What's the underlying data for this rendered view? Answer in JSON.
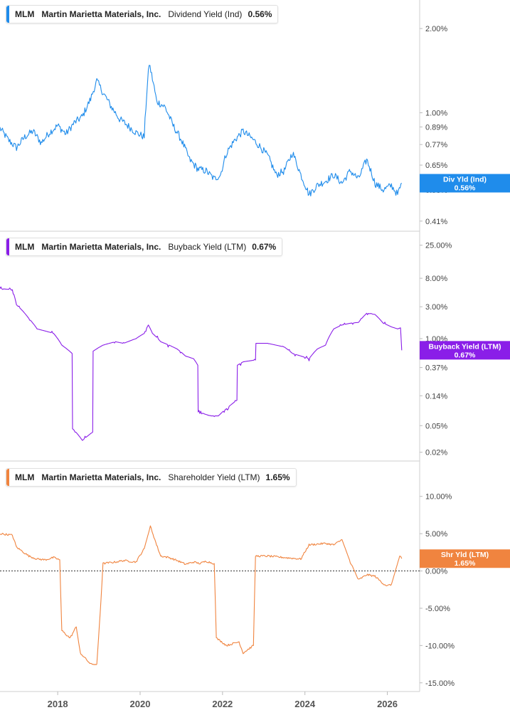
{
  "colors": {
    "dividend": "#1f8ceb",
    "buyback": "#8a1ee8",
    "shareholder": "#f0843f"
  },
  "chart_data": [
    {
      "type": "line",
      "ticker": "MLM",
      "company": "Martin Marietta Materials, Inc.",
      "metric": "Dividend Yield (Ind)",
      "current_value": "0.56%",
      "tag_label": "Div Yld (Ind)",
      "tag_value": "0.56%",
      "scale": "log",
      "ylim": [
        0.4,
        2.25
      ],
      "y_ticks": [
        {
          "v": 2.0,
          "label": "2.00%"
        },
        {
          "v": 1.0,
          "label": "1.00%"
        },
        {
          "v": 0.89,
          "label": "0.89%"
        },
        {
          "v": 0.77,
          "label": "0.77%"
        },
        {
          "v": 0.65,
          "label": "0.65%"
        },
        {
          "v": 0.53,
          "label": "0.53%"
        },
        {
          "v": 0.41,
          "label": "0.41%"
        }
      ],
      "x": [
        2016.6,
        2016.8,
        2017.0,
        2017.2,
        2017.4,
        2017.6,
        2017.8,
        2018.0,
        2018.2,
        2018.4,
        2018.6,
        2018.8,
        2018.95,
        2019.1,
        2019.3,
        2019.5,
        2019.7,
        2019.9,
        2020.1,
        2020.22,
        2020.4,
        2020.6,
        2020.8,
        2021.0,
        2021.2,
        2021.4,
        2021.6,
        2021.8,
        2021.95,
        2022.1,
        2022.3,
        2022.5,
        2022.75,
        2022.9,
        2023.1,
        2023.3,
        2023.5,
        2023.7,
        2023.9,
        2024.1,
        2024.3,
        2024.5,
        2024.7,
        2024.9,
        2025.1,
        2025.3,
        2025.5,
        2025.7,
        2025.9,
        2026.1,
        2026.25,
        2026.35
      ],
      "values": [
        0.88,
        0.8,
        0.75,
        0.82,
        0.86,
        0.78,
        0.85,
        0.9,
        0.84,
        0.92,
        0.97,
        1.12,
        1.3,
        1.18,
        1.05,
        0.95,
        0.9,
        0.85,
        0.82,
        1.5,
        1.1,
        1.05,
        0.9,
        0.8,
        0.68,
        0.63,
        0.62,
        0.58,
        0.6,
        0.72,
        0.8,
        0.86,
        0.8,
        0.76,
        0.7,
        0.6,
        0.62,
        0.72,
        0.6,
        0.51,
        0.55,
        0.57,
        0.6,
        0.56,
        0.62,
        0.58,
        0.68,
        0.56,
        0.53,
        0.55,
        0.51,
        0.56
      ]
    },
    {
      "type": "line",
      "ticker": "MLM",
      "company": "Martin Marietta Materials, Inc.",
      "metric": "Buyback Yield (LTM)",
      "current_value": "0.67%",
      "tag_label": "Buyback Yield (LTM)",
      "tag_value": "0.67%",
      "scale": "log",
      "ylim": [
        0.018,
        28
      ],
      "y_ticks": [
        {
          "v": 25,
          "label": "25.00%"
        },
        {
          "v": 8,
          "label": "8.00%"
        },
        {
          "v": 3,
          "label": "3.00%"
        },
        {
          "v": 1,
          "label": "1.00%"
        },
        {
          "v": 0.37,
          "label": "0.37%"
        },
        {
          "v": 0.14,
          "label": "0.14%"
        },
        {
          "v": 0.05,
          "label": "0.05%"
        },
        {
          "v": 0.02,
          "label": "0.02%"
        }
      ],
      "x": [
        2016.6,
        2016.9,
        2017.0,
        2017.3,
        2017.5,
        2017.7,
        2017.9,
        2018.1,
        2018.35,
        2018.36,
        2018.6,
        2018.85,
        2018.86,
        2019.1,
        2019.4,
        2019.6,
        2019.9,
        2020.1,
        2020.2,
        2020.3,
        2020.5,
        2020.7,
        2020.9,
        2021.1,
        2021.3,
        2021.4,
        2021.41,
        2021.7,
        2021.9,
        2022.1,
        2022.35,
        2022.36,
        2022.5,
        2022.8,
        2022.81,
        2023.1,
        2023.3,
        2023.5,
        2023.7,
        2023.9,
        2024.1,
        2024.3,
        2024.5,
        2024.7,
        2024.9,
        2025.1,
        2025.3,
        2025.5,
        2025.7,
        2025.9,
        2026.1,
        2026.25,
        2026.32,
        2026.35
      ],
      "values": [
        5.6,
        5.4,
        3.2,
        2.0,
        1.4,
        1.3,
        1.2,
        0.8,
        0.6,
        0.045,
        0.03,
        0.04,
        0.65,
        0.8,
        0.9,
        0.85,
        1.0,
        1.2,
        1.6,
        1.2,
        0.9,
        0.8,
        0.7,
        0.55,
        0.5,
        0.4,
        0.08,
        0.07,
        0.07,
        0.09,
        0.12,
        0.4,
        0.45,
        0.48,
        0.85,
        0.85,
        0.8,
        0.75,
        0.6,
        0.55,
        0.5,
        0.7,
        0.8,
        1.4,
        1.6,
        1.7,
        1.75,
        2.4,
        2.3,
        1.7,
        1.5,
        1.4,
        1.45,
        0.67
      ]
    },
    {
      "type": "line",
      "ticker": "MLM",
      "company": "Martin Marietta Materials, Inc.",
      "metric": "Shareholder Yield (LTM)",
      "current_value": "1.65%",
      "tag_label": "Shr Yld (LTM)",
      "tag_value": "1.65%",
      "scale": "linear",
      "ylim": [
        -15.5,
        11.5
      ],
      "zero_line": true,
      "y_ticks": [
        {
          "v": 10,
          "label": "10.00%"
        },
        {
          "v": 5,
          "label": "5.00%"
        },
        {
          "v": 0,
          "label": "0.00%"
        },
        {
          "v": -5,
          "label": "-5.00%"
        },
        {
          "v": -10,
          "label": "-10.00%"
        },
        {
          "v": -15,
          "label": "-15.00%"
        }
      ],
      "x": [
        2016.6,
        2016.9,
        2017.0,
        2017.3,
        2017.5,
        2017.7,
        2017.9,
        2018.05,
        2018.1,
        2018.3,
        2018.45,
        2018.55,
        2018.8,
        2018.95,
        2019.05,
        2019.1,
        2019.4,
        2019.6,
        2019.9,
        2020.1,
        2020.25,
        2020.4,
        2020.5,
        2020.7,
        2020.9,
        2021.1,
        2021.3,
        2021.45,
        2021.6,
        2021.8,
        2021.85,
        2022.1,
        2022.4,
        2022.5,
        2022.75,
        2022.8,
        2023.1,
        2023.5,
        2023.9,
        2024.1,
        2024.5,
        2024.7,
        2024.9,
        2025.1,
        2025.3,
        2025.5,
        2025.7,
        2025.9,
        2026.0,
        2026.1,
        2026.3,
        2026.35
      ],
      "values": [
        5.0,
        4.8,
        3.2,
        2.0,
        1.6,
        1.5,
        1.8,
        1.5,
        -8.0,
        -9.0,
        -7.5,
        -11.0,
        -12.5,
        -12.5,
        -4.0,
        1.0,
        1.2,
        1.4,
        1.2,
        3.0,
        6.0,
        3.5,
        2.0,
        1.8,
        1.4,
        0.9,
        1.2,
        1.0,
        1.3,
        1.0,
        -9.0,
        -10.0,
        -9.5,
        -11.0,
        -10.0,
        2.0,
        2.0,
        1.8,
        1.6,
        3.5,
        3.7,
        3.5,
        4.2,
        1.2,
        -1.2,
        -0.5,
        -0.7,
        -1.7,
        -2.0,
        -1.8,
        2.0,
        1.65
      ]
    }
  ],
  "x_axis": {
    "ticks": [
      {
        "v": 2018,
        "label": "2018"
      },
      {
        "v": 2020,
        "label": "2020"
      },
      {
        "v": 2022,
        "label": "2022"
      },
      {
        "v": 2024,
        "label": "2024"
      },
      {
        "v": 2026,
        "label": "2026"
      }
    ]
  }
}
